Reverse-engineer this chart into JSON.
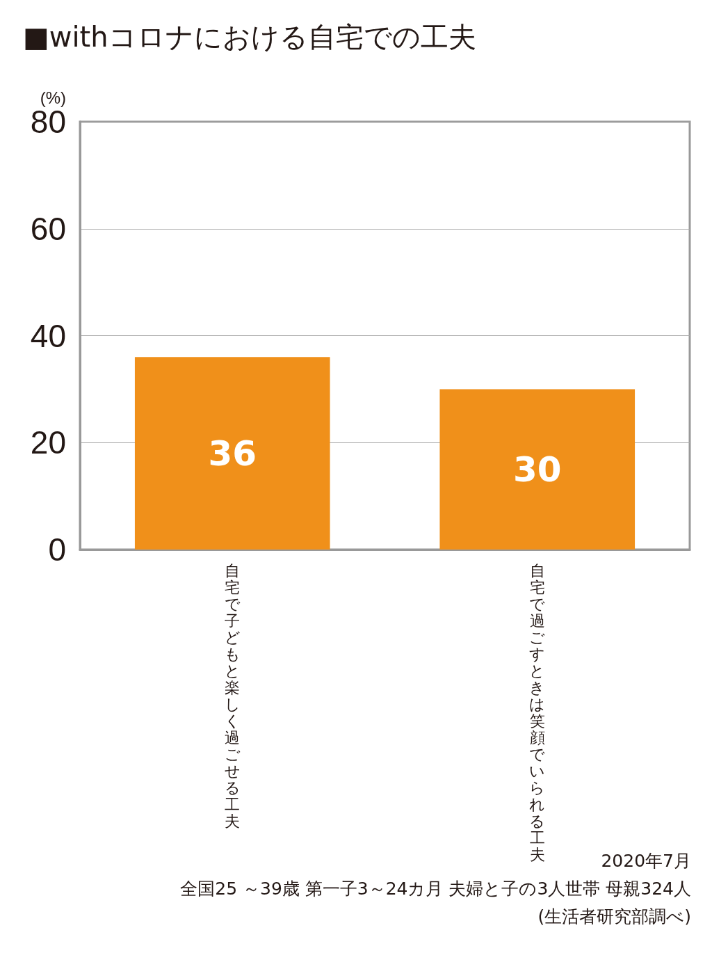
{
  "chart_data": {
    "type": "bar",
    "title": "■withコロナにおける自宅での工夫",
    "ylabel": "(%)",
    "categories": [
      "自宅で子どもと楽しく過ごせる工夫",
      "自宅で過ごすときは笑顔でいられる工夫"
    ],
    "values": [
      36,
      30
    ],
    "color": "#f0901a",
    "data_labels": true,
    "ylim": [
      0,
      80
    ],
    "yticks": [
      0,
      20,
      40,
      60,
      80
    ],
    "grid": "y",
    "annotations": [
      "2020年7月",
      "全国25 ～39歳 第一子3～24カ月 夫婦と子の3人世帯 母親324人",
      "(生活者研究部調べ)"
    ]
  }
}
